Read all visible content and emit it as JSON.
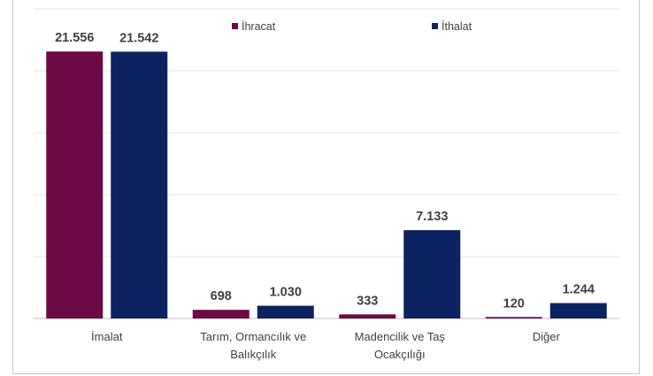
{
  "chart_data": {
    "type": "bar",
    "categories": [
      "İmalat",
      "Tarım, Ormancılık ve Balıkçılık",
      "Madencilik ve Taş Ocakçılığı",
      "Diğer"
    ],
    "category_lines": [
      [
        "İmalat"
      ],
      [
        "Tarım, Ormancılık ve",
        "Balıkçılık"
      ],
      [
        "Madencilik ve Taş",
        "Ocakçılığı"
      ],
      [
        "Diğer"
      ]
    ],
    "series": [
      {
        "name": "İhracat",
        "values": [
          21556,
          698,
          333,
          120
        ],
        "labels": [
          "21.556",
          "698",
          "333",
          "120"
        ],
        "color": "#6b0a45"
      },
      {
        "name": "İthalat",
        "values": [
          21542,
          1030,
          7133,
          1244
        ],
        "labels": [
          "21.542",
          "1.030",
          "7.133",
          "1.244"
        ],
        "color": "#0d2260"
      }
    ],
    "ylim": [
      0,
      25000
    ],
    "gridlines": true,
    "legend_position": "top"
  }
}
